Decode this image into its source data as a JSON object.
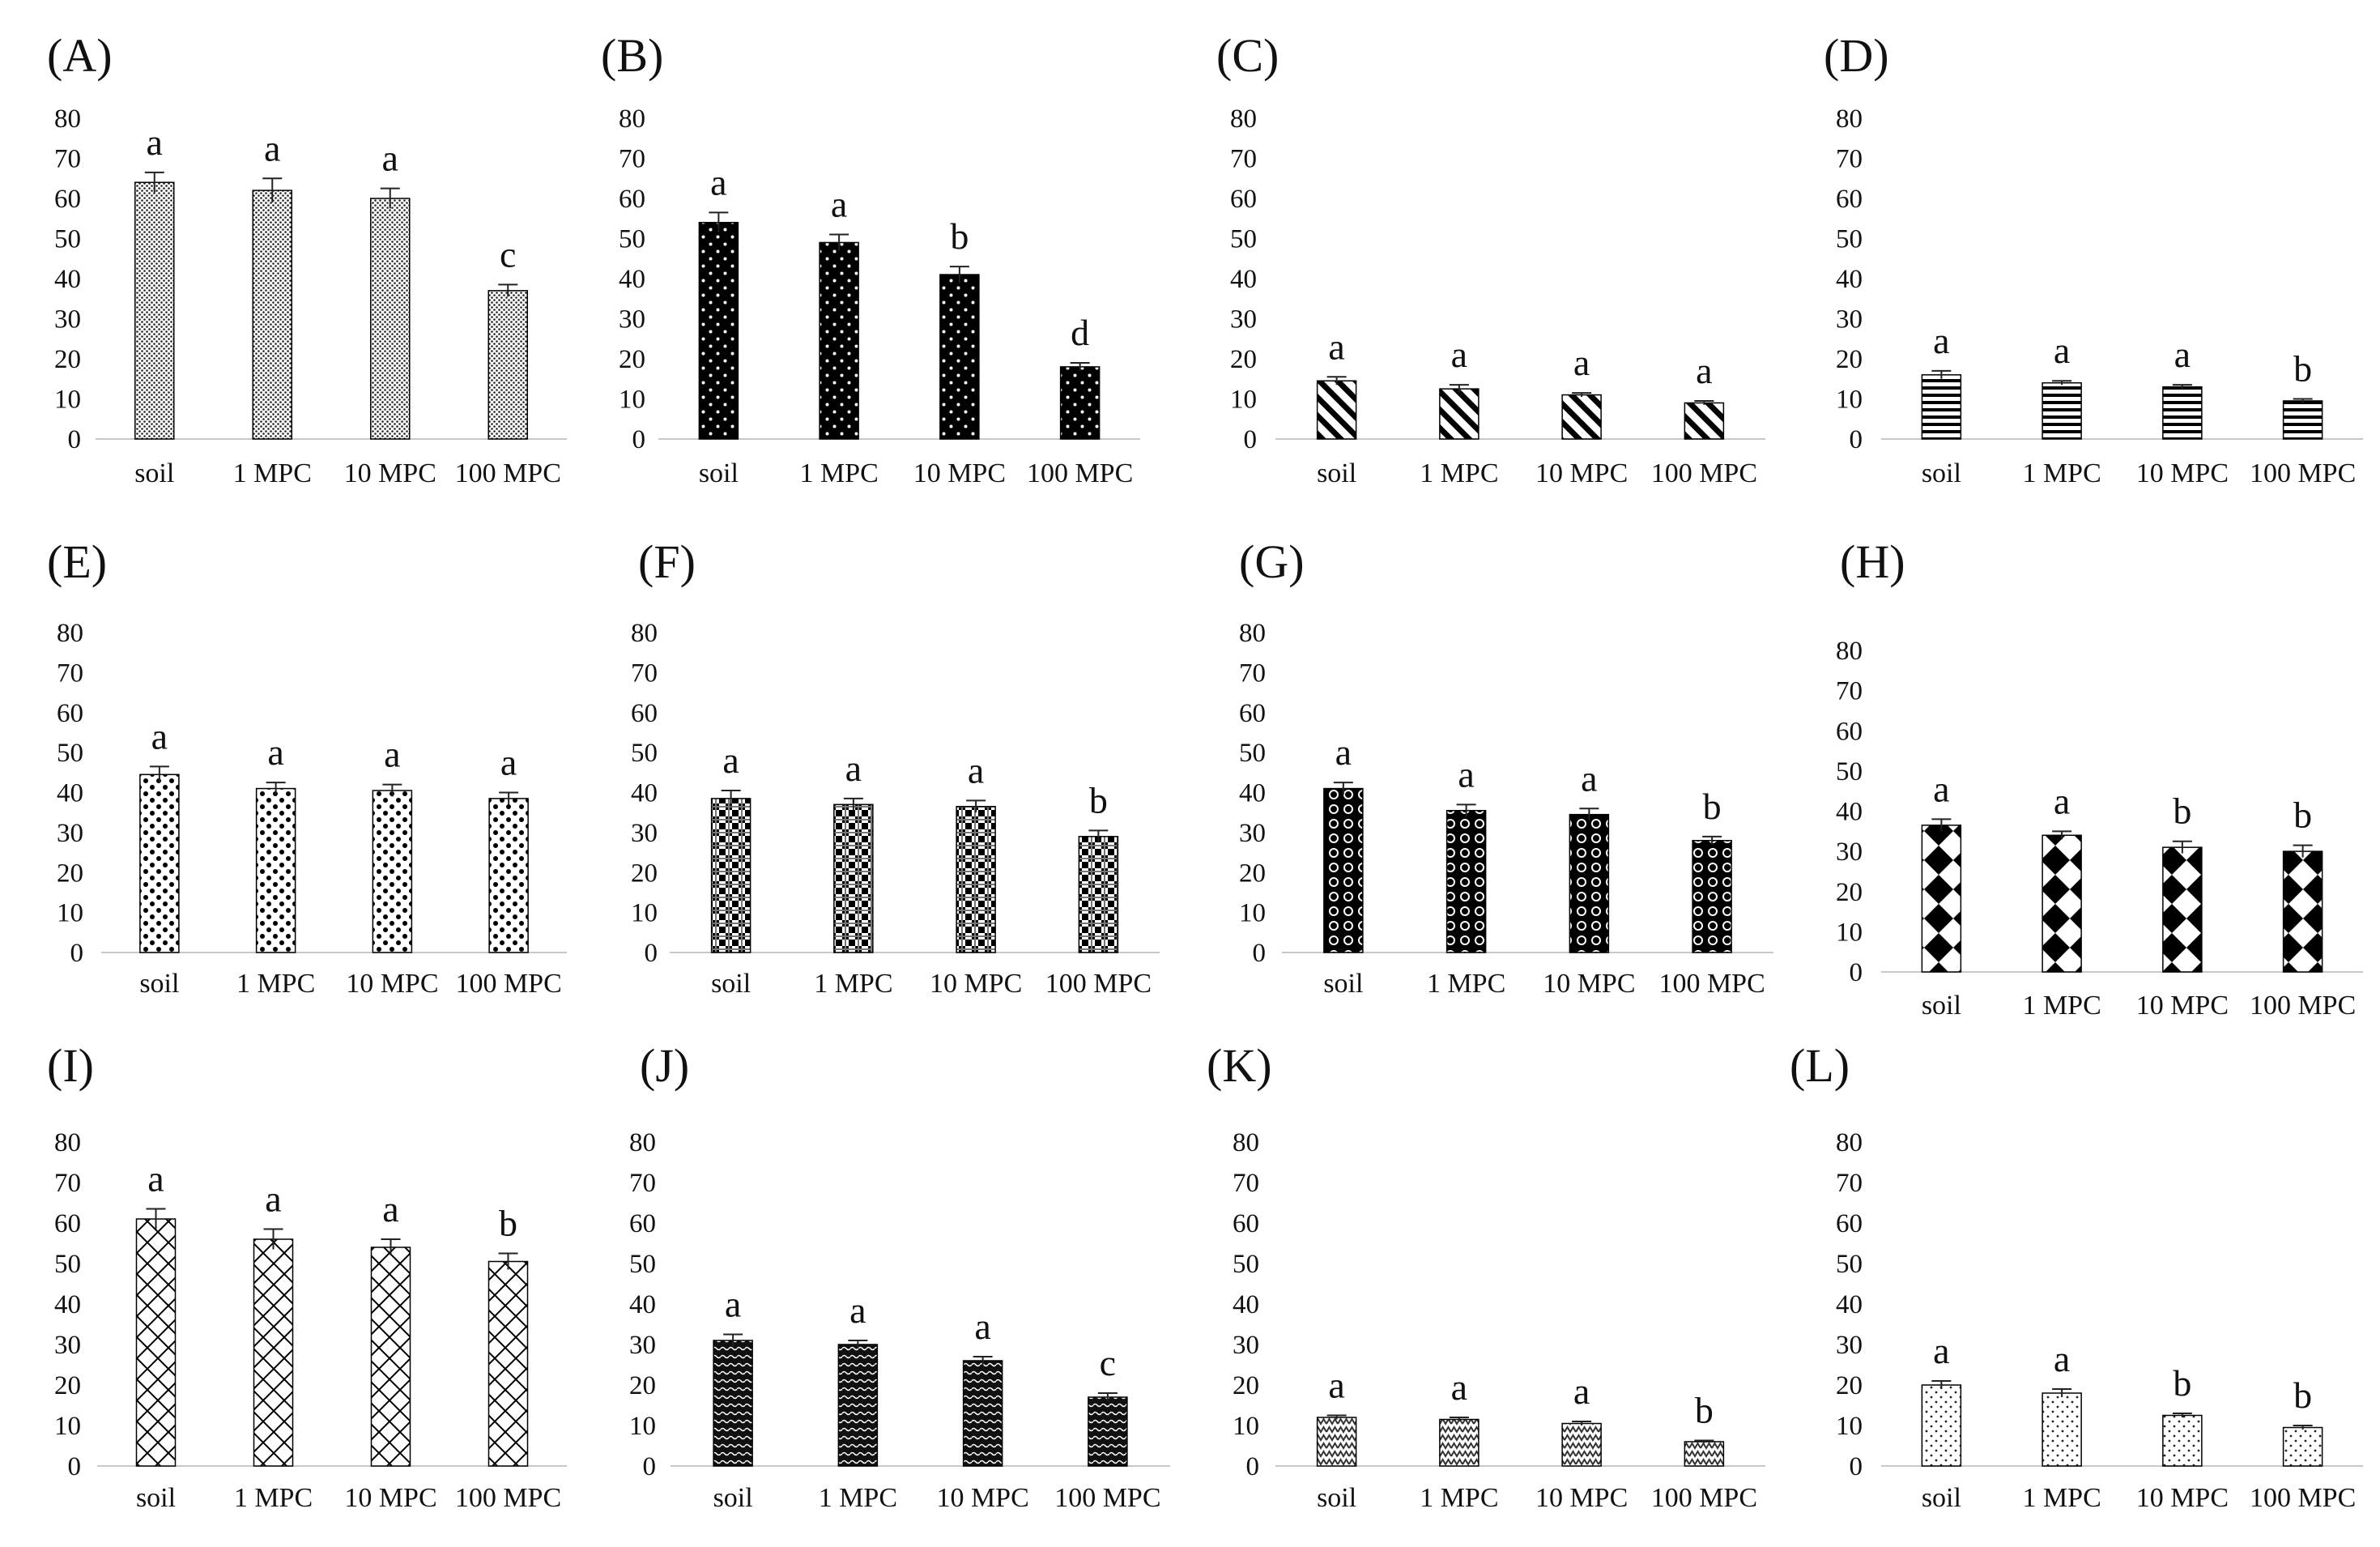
{
  "chart_data": [
    {
      "label": "(A)",
      "type": "bar",
      "pattern": "dense-dots",
      "categories": [
        "soil",
        "1 MPC",
        "10 MPC",
        "100 MPC"
      ],
      "values": [
        64,
        62,
        60,
        37
      ],
      "errors": [
        2.5,
        3,
        2.5,
        1.5
      ],
      "significance": [
        "a",
        "a",
        "a",
        "c"
      ],
      "ylim": [
        0,
        80
      ],
      "yticks": [
        "0",
        "10",
        "20",
        "30",
        "40",
        "50",
        "60",
        "70",
        "80"
      ]
    },
    {
      "label": "(B)",
      "type": "bar",
      "pattern": "white-dots-on-black",
      "categories": [
        "soil",
        "1 MPC",
        "10 MPC",
        "100 MPC"
      ],
      "values": [
        54,
        49,
        41,
        18
      ],
      "errors": [
        2.5,
        2,
        2,
        1
      ],
      "significance": [
        "a",
        "a",
        "b",
        "d"
      ],
      "ylim": [
        0,
        80
      ],
      "yticks": [
        "0",
        "10",
        "20",
        "30",
        "40",
        "50",
        "60",
        "70",
        "80"
      ]
    },
    {
      "label": "(C)",
      "type": "bar",
      "pattern": "diagonal-stripes",
      "categories": [
        "soil",
        "1 MPC",
        "10 MPC",
        "100 MPC"
      ],
      "values": [
        14.5,
        12.5,
        11,
        9
      ],
      "errors": [
        1,
        1,
        0.5,
        0.5
      ],
      "significance": [
        "a",
        "a",
        "a",
        "a"
      ],
      "ylim": [
        0,
        80
      ],
      "yticks": [
        "0",
        "10",
        "20",
        "30",
        "40",
        "50",
        "60",
        "70",
        "80"
      ]
    },
    {
      "label": "(D)",
      "type": "bar",
      "pattern": "horizontal-stripes",
      "categories": [
        "soil",
        "1 MPC",
        "10 MPC",
        "100 MPC"
      ],
      "values": [
        16,
        14,
        13,
        9.5
      ],
      "errors": [
        1,
        0.5,
        0.5,
        0.5
      ],
      "significance": [
        "a",
        "a",
        "a",
        "b"
      ],
      "ylim": [
        0,
        80
      ],
      "yticks": [
        "0",
        "10",
        "20",
        "30",
        "40",
        "50",
        "60",
        "70",
        "80"
      ]
    },
    {
      "label": "(E)",
      "type": "bar",
      "pattern": "large-dots",
      "categories": [
        "soil",
        "1 MPC",
        "10 MPC",
        "100 MPC"
      ],
      "values": [
        44.5,
        41,
        40.5,
        38.5
      ],
      "errors": [
        2,
        1.5,
        1.5,
        1.5
      ],
      "significance": [
        "a",
        "a",
        "a",
        "a"
      ],
      "ylim": [
        0,
        80
      ],
      "yticks": [
        "0",
        "10",
        "20",
        "30",
        "40",
        "50",
        "60",
        "70",
        "80"
      ]
    },
    {
      "label": "(F)",
      "type": "bar",
      "pattern": "checkerboard",
      "categories": [
        "soil",
        "1 MPC",
        "10 MPC",
        "100 MPC"
      ],
      "values": [
        38.5,
        37,
        36.5,
        29
      ],
      "errors": [
        2,
        1.5,
        1.5,
        1.5
      ],
      "significance": [
        "a",
        "a",
        "a",
        "b"
      ],
      "ylim": [
        0,
        80
      ],
      "yticks": [
        "0",
        "10",
        "20",
        "30",
        "40",
        "50",
        "60",
        "70",
        "80"
      ]
    },
    {
      "label": "(G)",
      "type": "bar",
      "pattern": "circles-on-black",
      "categories": [
        "soil",
        "1 MPC",
        "10 MPC",
        "100 MPC"
      ],
      "values": [
        41,
        35.5,
        34.5,
        28
      ],
      "errors": [
        1.5,
        1.5,
        1.5,
        1
      ],
      "significance": [
        "a",
        "a",
        "a",
        "b"
      ],
      "ylim": [
        0,
        80
      ],
      "yticks": [
        "0",
        "10",
        "20",
        "30",
        "40",
        "50",
        "60",
        "70",
        "80"
      ]
    },
    {
      "label": "(H)",
      "type": "bar",
      "pattern": "diamonds",
      "categories": [
        "soil",
        "1 MPC",
        "10 MPC",
        "100 MPC"
      ],
      "values": [
        36.5,
        34,
        31,
        30
      ],
      "errors": [
        1.5,
        1,
        1.5,
        1.5
      ],
      "significance": [
        "a",
        "a",
        "b",
        "b"
      ],
      "ylim": [
        0,
        80
      ],
      "yticks": [
        "0",
        "10",
        "20",
        "30",
        "40",
        "50",
        "60",
        "70",
        "80"
      ]
    },
    {
      "label": "(I)",
      "type": "bar",
      "pattern": "crosshatch",
      "categories": [
        "soil",
        "1 MPC",
        "10 MPC",
        "100 MPC"
      ],
      "values": [
        61,
        56,
        54,
        50.5
      ],
      "errors": [
        2.5,
        2.5,
        2,
        2
      ],
      "significance": [
        "a",
        "a",
        "a",
        "b"
      ],
      "ylim": [
        0,
        80
      ],
      "yticks": [
        "0",
        "10",
        "20",
        "30",
        "40",
        "50",
        "60",
        "70",
        "80"
      ]
    },
    {
      "label": "(J)",
      "type": "bar",
      "pattern": "dark-weave",
      "categories": [
        "soil",
        "1 MPC",
        "10 MPC",
        "100 MPC"
      ],
      "values": [
        31,
        30,
        26,
        17
      ],
      "errors": [
        1.5,
        1,
        1,
        1
      ],
      "significance": [
        "a",
        "a",
        "a",
        "c"
      ],
      "ylim": [
        0,
        80
      ],
      "yticks": [
        "0",
        "10",
        "20",
        "30",
        "40",
        "50",
        "60",
        "70",
        "80"
      ]
    },
    {
      "label": "(K)",
      "type": "bar",
      "pattern": "zigzag",
      "categories": [
        "soil",
        "1 MPC",
        "10 MPC",
        "100 MPC"
      ],
      "values": [
        12,
        11.5,
        10.5,
        6
      ],
      "errors": [
        0.5,
        0.5,
        0.5,
        0.3
      ],
      "significance": [
        "a",
        "a",
        "a",
        "b"
      ],
      "ylim": [
        0,
        80
      ],
      "yticks": [
        "0",
        "10",
        "20",
        "30",
        "40",
        "50",
        "60",
        "70",
        "80"
      ]
    },
    {
      "label": "(L)",
      "type": "bar",
      "pattern": "sparse-dots",
      "categories": [
        "soil",
        "1 MPC",
        "10 MPC",
        "100 MPC"
      ],
      "values": [
        20,
        18,
        12.5,
        9.5
      ],
      "errors": [
        1,
        1,
        0.5,
        0.5
      ],
      "significance": [
        "a",
        "a",
        "b",
        "b"
      ],
      "ylim": [
        0,
        80
      ],
      "yticks": [
        "0",
        "10",
        "20",
        "30",
        "40",
        "50",
        "60",
        "70",
        "80"
      ]
    }
  ]
}
